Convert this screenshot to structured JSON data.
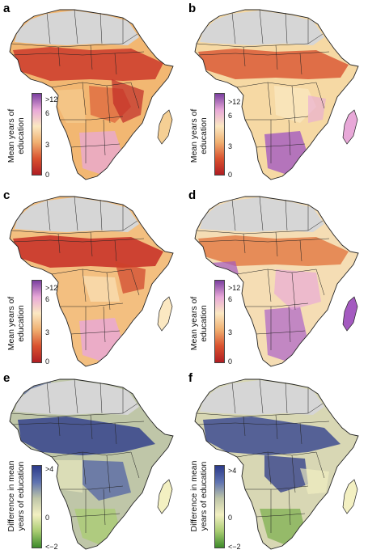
{
  "panels": [
    {
      "label": "a",
      "scale": "education"
    },
    {
      "label": "b",
      "scale": "education"
    },
    {
      "label": "c",
      "scale": "education"
    },
    {
      "label": "d",
      "scale": "education"
    },
    {
      "label": "e",
      "scale": "difference"
    },
    {
      "label": "f",
      "scale": "difference"
    }
  ],
  "legend_education": {
    "title_line1": "Mean years of",
    "title_line2": "education",
    "ticks": [
      ">12",
      "6",
      "3",
      "0"
    ],
    "colors": [
      "#7b3fa0",
      "#e8a8d8",
      "#fbe8c2",
      "#f0b071",
      "#d9522f",
      "#b01d22"
    ]
  },
  "legend_difference": {
    "title_line1": "Difference in mean",
    "title_line2": "years of education",
    "ticks": [
      ">4",
      "0",
      "<−2"
    ],
    "colors": [
      "#2c3a8a",
      "#5f73b0",
      "#bfc6a8",
      "#f3f0c2",
      "#a9cc72",
      "#3d8a2a"
    ]
  },
  "colors": {
    "no_data": "#d6d6d6",
    "border": "#222222"
  }
}
